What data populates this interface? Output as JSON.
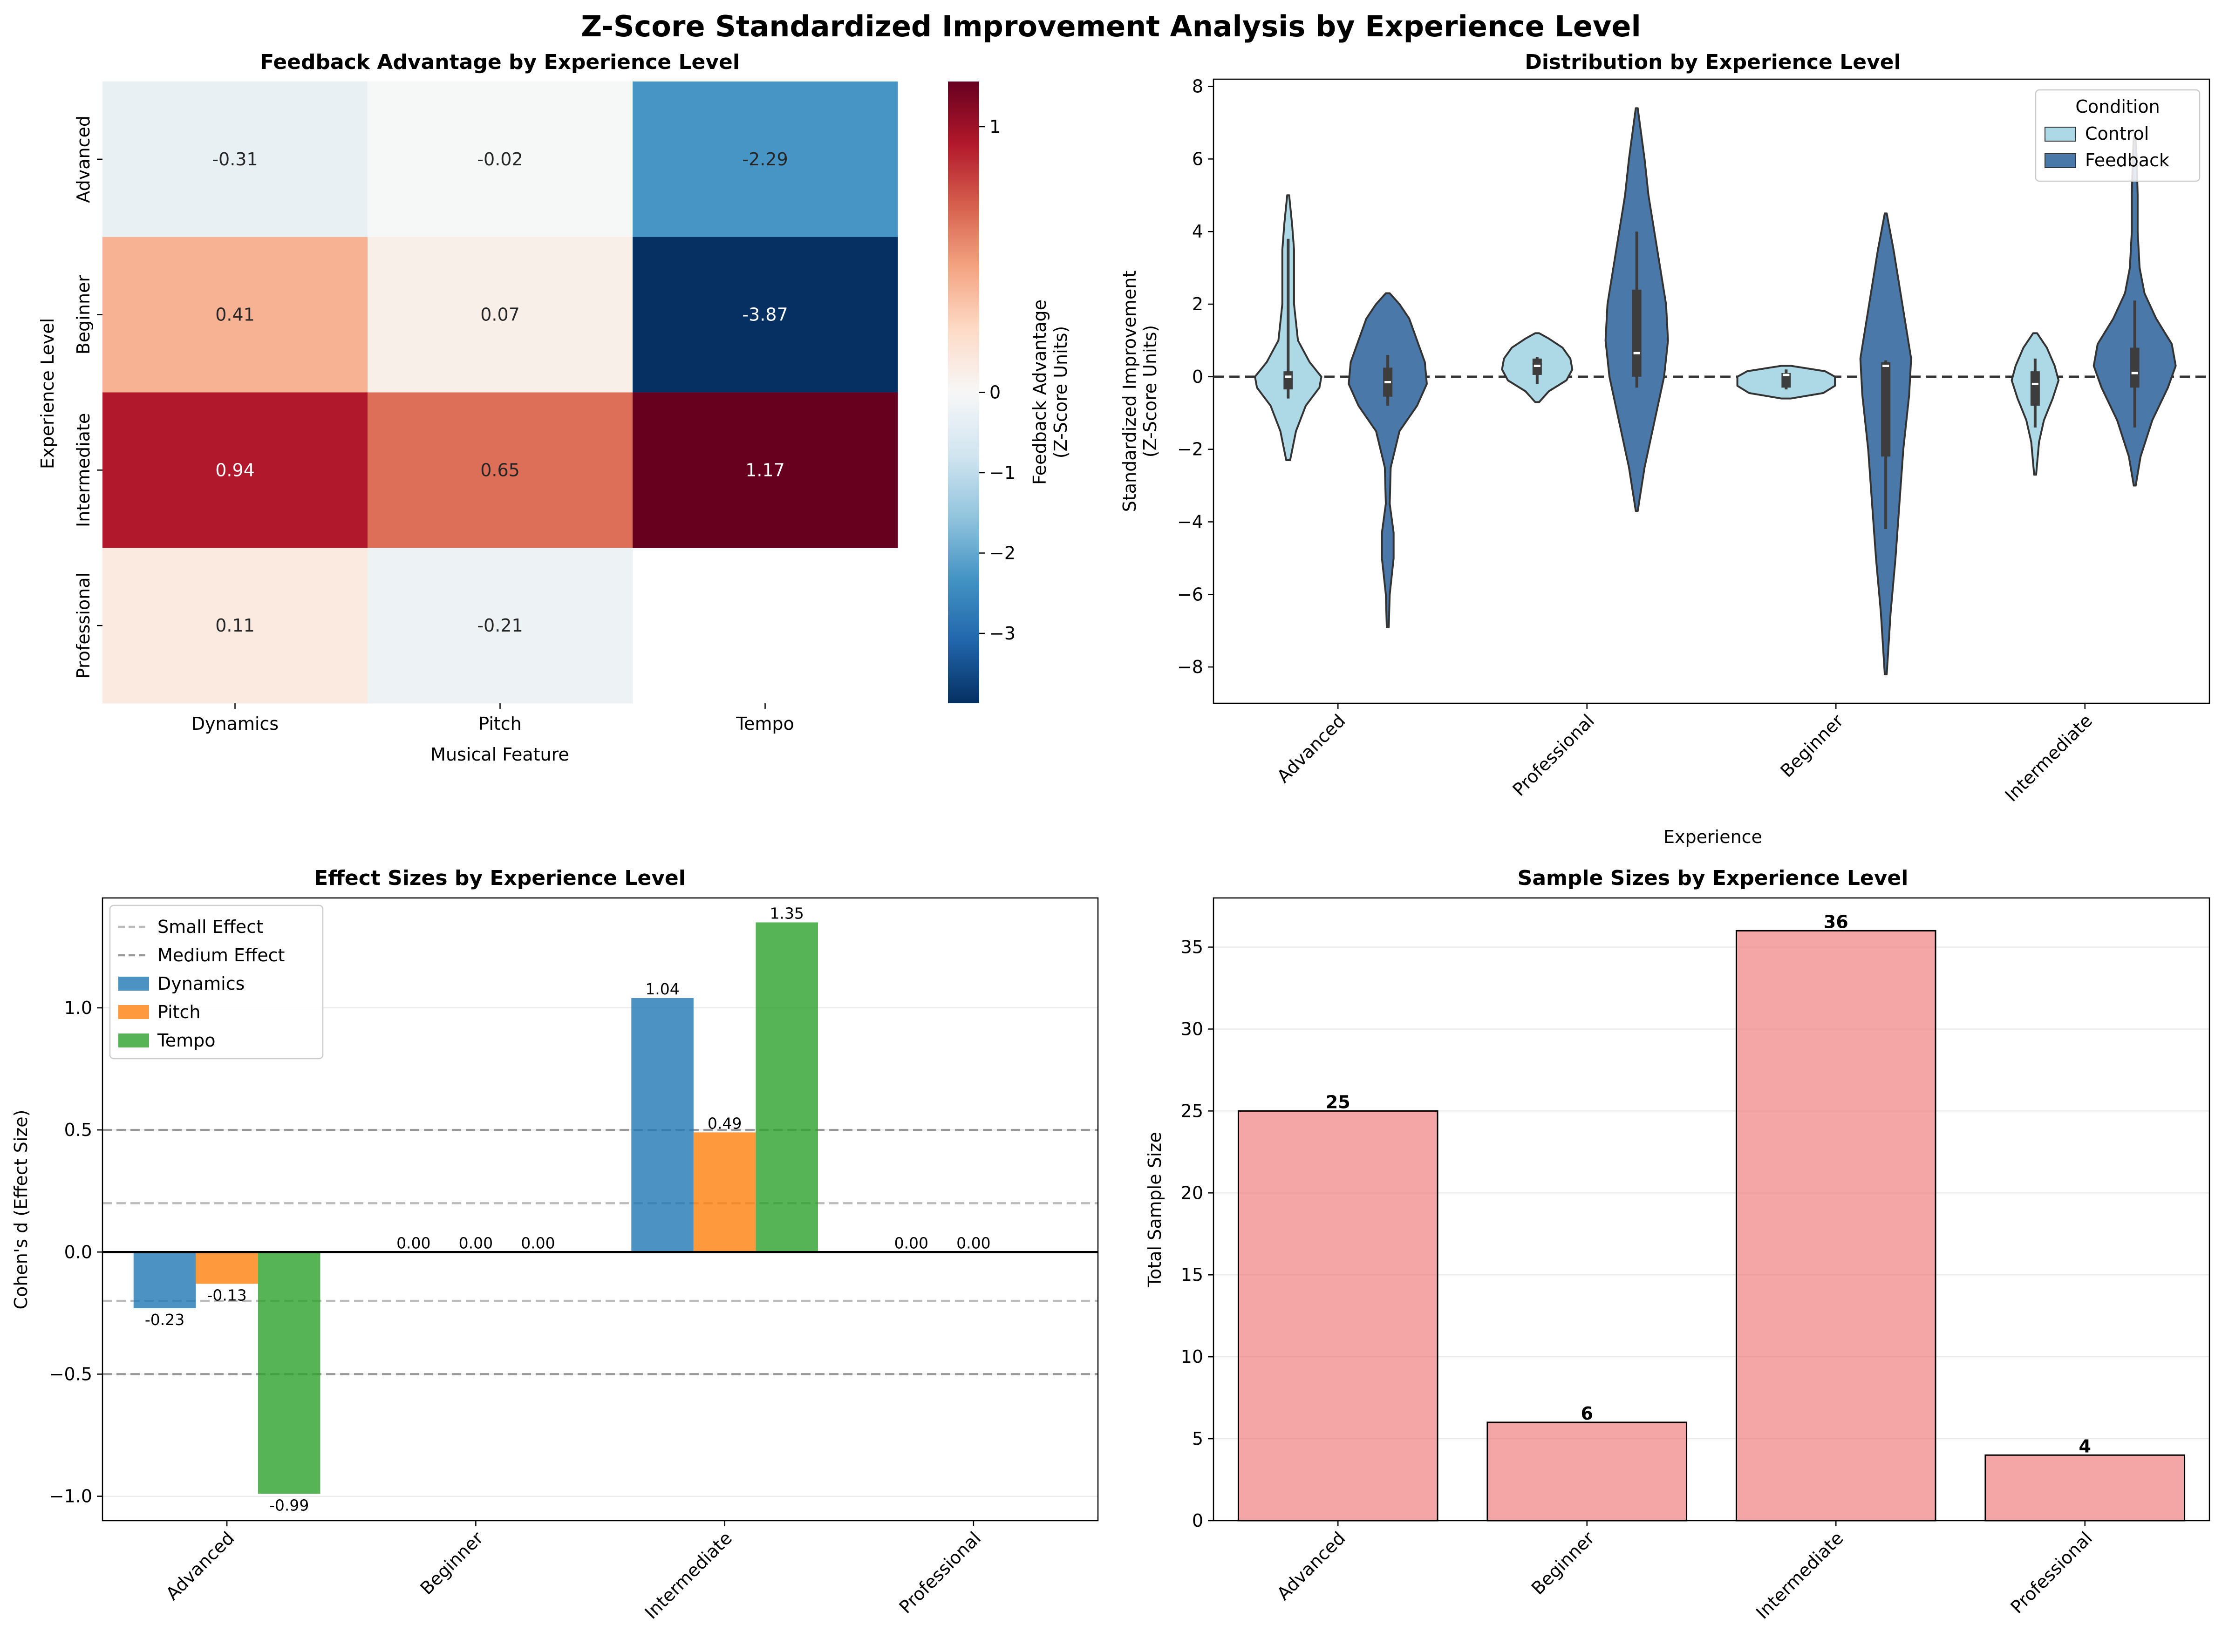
{
  "suptitle": "Z-Score Standardized Improvement Analysis by Experience Level",
  "chart_data": [
    {
      "type": "heatmap",
      "title": "Feedback Advantage by Experience Level",
      "xlabel": "Musical Feature",
      "ylabel": "Experience Level",
      "x_categories": [
        "Dynamics",
        "Pitch",
        "Tempo"
      ],
      "y_categories": [
        "Advanced",
        "Beginner",
        "Intermediate",
        "Professional"
      ],
      "values": [
        [
          -0.31,
          -0.02,
          -2.29
        ],
        [
          0.41,
          0.07,
          -3.87
        ],
        [
          0.94,
          0.65,
          1.17
        ],
        [
          0.11,
          -0.21,
          null
        ]
      ],
      "cell_labels": [
        [
          "-0.31",
          "-0.02",
          "-2.29"
        ],
        [
          "0.41",
          "0.07",
          "-3.87"
        ],
        [
          "0.94",
          "0.65",
          "1.17"
        ],
        [
          "0.11",
          "-0.21",
          ""
        ]
      ],
      "colormap": "RdBu_r",
      "vmin": -3.87,
      "vmax": 1.17,
      "center": 0,
      "colorbar_label_line1": "Feedback Advantage",
      "colorbar_label_line2": "(Z-Score Units)",
      "colorbar_ticks": [
        1,
        0,
        -1,
        -2,
        -3
      ],
      "colorbar_tick_labels": [
        "1",
        "0",
        "−1",
        "−2",
        "−3"
      ]
    },
    {
      "type": "violin",
      "title": "Distribution by Experience Level",
      "xlabel": "Experience",
      "ylabel_line1": "Standardized Improvement",
      "ylabel_line2": "(Z-Score Units)",
      "categories": [
        "Advanced",
        "Professional",
        "Beginner",
        "Intermediate"
      ],
      "ylim": [
        -9,
        8.2
      ],
      "yticks": [
        8,
        6,
        4,
        2,
        0,
        -2,
        -4,
        -6,
        -8
      ],
      "ytick_labels": [
        "8",
        "6",
        "4",
        "2",
        "0",
        "−2",
        "−4",
        "−6",
        "−8"
      ],
      "reference_line_y": 0,
      "legend": {
        "title": "Condition",
        "placement": "top-right",
        "entries": [
          "Control",
          "Feedback"
        ]
      },
      "series": [
        {
          "name": "Control",
          "color": "#add8e6",
          "violins": [
            {
              "min": -2.3,
              "max": 5.0,
              "q1": -0.35,
              "median": 0.0,
              "q3": 0.15,
              "whisker_low": -0.6,
              "whisker_high": 3.8,
              "profile": [
                [
                  -2.3,
                  0.02
                ],
                [
                  -1.5,
                  0.08
                ],
                [
                  -0.8,
                  0.18
                ],
                [
                  -0.3,
                  0.32
                ],
                [
                  0,
                  0.34
                ],
                [
                  0.4,
                  0.22
                ],
                [
                  1.0,
                  0.1
                ],
                [
                  2.0,
                  0.06
                ],
                [
                  3.5,
                  0.06
                ],
                [
                  4.2,
                  0.04
                ],
                [
                  5.0,
                  0.01
                ]
              ]
            },
            {
              "min": -0.7,
              "max": 1.2,
              "q1": 0.05,
              "median": 0.3,
              "q3": 0.5,
              "whisker_low": -0.2,
              "whisker_high": 0.55,
              "profile": [
                [
                  -0.7,
                  0.02
                ],
                [
                  -0.4,
                  0.12
                ],
                [
                  -0.1,
                  0.3
                ],
                [
                  0.2,
                  0.36
                ],
                [
                  0.5,
                  0.34
                ],
                [
                  0.8,
                  0.26
                ],
                [
                  1.05,
                  0.12
                ],
                [
                  1.2,
                  0.02
                ]
              ]
            },
            {
              "min": -0.6,
              "max": 0.3,
              "q1": -0.3,
              "median": 0.05,
              "q3": 0.1,
              "whisker_low": -0.35,
              "whisker_high": 0.2,
              "profile": [
                [
                  -0.6,
                  0.05
                ],
                [
                  -0.45,
                  0.38
                ],
                [
                  -0.25,
                  0.5
                ],
                [
                  0,
                  0.5
                ],
                [
                  0.15,
                  0.4
                ],
                [
                  0.3,
                  0.05
                ]
              ]
            },
            {
              "min": -2.7,
              "max": 1.2,
              "q1": -0.8,
              "median": -0.2,
              "q3": 0.15,
              "whisker_low": -1.4,
              "whisker_high": 0.5,
              "profile": [
                [
                  -2.7,
                  0.01
                ],
                [
                  -1.8,
                  0.04
                ],
                [
                  -1.2,
                  0.09
                ],
                [
                  -0.6,
                  0.18
                ],
                [
                  -0.1,
                  0.24
                ],
                [
                  0.3,
                  0.2
                ],
                [
                  0.8,
                  0.12
                ],
                [
                  1.2,
                  0.02
                ]
              ]
            }
          ]
        },
        {
          "name": "Feedback",
          "color": "#4a78a8",
          "violins": [
            {
              "min": -6.9,
              "max": 2.3,
              "q1": -0.55,
              "median": -0.15,
              "q3": 0.25,
              "whisker_low": -0.8,
              "whisker_high": 0.6,
              "profile": [
                [
                  -6.9,
                  0.01
                ],
                [
                  -6.0,
                  0.02
                ],
                [
                  -5.0,
                  0.06
                ],
                [
                  -4.3,
                  0.06
                ],
                [
                  -3.5,
                  0.02
                ],
                [
                  -2.5,
                  0.03
                ],
                [
                  -1.5,
                  0.12
                ],
                [
                  -0.8,
                  0.3
                ],
                [
                  -0.2,
                  0.4
                ],
                [
                  0.4,
                  0.38
                ],
                [
                  1.0,
                  0.3
                ],
                [
                  1.6,
                  0.22
                ],
                [
                  2.0,
                  0.12
                ],
                [
                  2.3,
                  0.02
                ]
              ]
            },
            {
              "min": -3.7,
              "max": 7.4,
              "q1": 0.0,
              "median": 0.65,
              "q3": 2.4,
              "whisker_low": -0.3,
              "whisker_high": 4.0,
              "profile": [
                [
                  -3.7,
                  0.01
                ],
                [
                  -2.5,
                  0.08
                ],
                [
                  -1.0,
                  0.2
                ],
                [
                  0,
                  0.28
                ],
                [
                  1.0,
                  0.32
                ],
                [
                  2.0,
                  0.3
                ],
                [
                  3.0,
                  0.24
                ],
                [
                  4.0,
                  0.18
                ],
                [
                  5.0,
                  0.12
                ],
                [
                  6.0,
                  0.08
                ],
                [
                  6.8,
                  0.04
                ],
                [
                  7.4,
                  0.01
                ]
              ]
            },
            {
              "min": -8.2,
              "max": 4.5,
              "q1": -2.2,
              "median": 0.3,
              "q3": 0.4,
              "whisker_low": -4.2,
              "whisker_high": 0.45,
              "profile": [
                [
                  -8.2,
                  0.01
                ],
                [
                  -6.5,
                  0.05
                ],
                [
                  -5.0,
                  0.1
                ],
                [
                  -3.5,
                  0.14
                ],
                [
                  -2.0,
                  0.18
                ],
                [
                  -0.5,
                  0.24
                ],
                [
                  0.5,
                  0.26
                ],
                [
                  1.5,
                  0.2
                ],
                [
                  2.5,
                  0.14
                ],
                [
                  3.5,
                  0.08
                ],
                [
                  4.5,
                  0.01
                ]
              ]
            },
            {
              "min": -3.0,
              "max": 6.6,
              "q1": -0.3,
              "median": 0.1,
              "q3": 0.8,
              "whisker_low": -1.4,
              "whisker_high": 2.1,
              "profile": [
                [
                  -3.0,
                  0.01
                ],
                [
                  -2.2,
                  0.06
                ],
                [
                  -1.2,
                  0.18
                ],
                [
                  -0.3,
                  0.34
                ],
                [
                  0.3,
                  0.42
                ],
                [
                  0.9,
                  0.38
                ],
                [
                  1.6,
                  0.22
                ],
                [
                  2.3,
                  0.1
                ],
                [
                  3.0,
                  0.05
                ],
                [
                  4.0,
                  0.03
                ],
                [
                  5.0,
                  0.03
                ],
                [
                  6.0,
                  0.02
                ],
                [
                  6.6,
                  0.01
                ]
              ]
            }
          ]
        }
      ]
    },
    {
      "type": "bar",
      "title": "Effect Sizes by Experience Level",
      "ylabel": "Cohen's d (Effect Size)",
      "categories": [
        "Advanced",
        "Beginner",
        "Intermediate",
        "Professional"
      ],
      "ylim": [
        -1.1,
        1.45
      ],
      "yticks": [
        1.0,
        0.5,
        0.0,
        -0.5,
        -1.0
      ],
      "ytick_labels": [
        "1.0",
        "0.5",
        "0.0",
        "−0.5",
        "−1.0"
      ],
      "grid": true,
      "legend_placement": "top-left",
      "reference_lines": [
        {
          "label": "Small Effect",
          "values": [
            0.2,
            -0.2
          ],
          "color": "#bbbbbb"
        },
        {
          "label": "Medium Effect",
          "values": [
            0.5,
            -0.5
          ],
          "color": "#999999"
        }
      ],
      "series": [
        {
          "name": "Dynamics",
          "color": "#1f77b4",
          "values": [
            -0.23,
            0.0,
            1.04,
            0.0
          ],
          "labels": [
            "-0.23",
            "0.00",
            "1.04",
            "0.00"
          ]
        },
        {
          "name": "Pitch",
          "color": "#ff7f0e",
          "values": [
            -0.13,
            0.0,
            0.49,
            0.0
          ],
          "labels": [
            "-0.13",
            "0.00",
            "0.49",
            "0.00"
          ]
        },
        {
          "name": "Tempo",
          "color": "#2ca02c",
          "values": [
            -0.99,
            0.0,
            1.35,
            null
          ],
          "labels": [
            "-0.99",
            "0.00",
            "1.35",
            ""
          ]
        }
      ]
    },
    {
      "type": "bar",
      "title": "Sample Sizes by Experience Level",
      "ylabel": "Total Sample Size",
      "categories": [
        "Advanced",
        "Beginner",
        "Intermediate",
        "Professional"
      ],
      "values": [
        25,
        6,
        36,
        4
      ],
      "labels": [
        "25",
        "6",
        "36",
        "4"
      ],
      "ylim": [
        0,
        38
      ],
      "yticks": [
        0,
        5,
        10,
        15,
        20,
        25,
        30,
        35
      ],
      "grid": true,
      "color": "#f08080"
    }
  ]
}
